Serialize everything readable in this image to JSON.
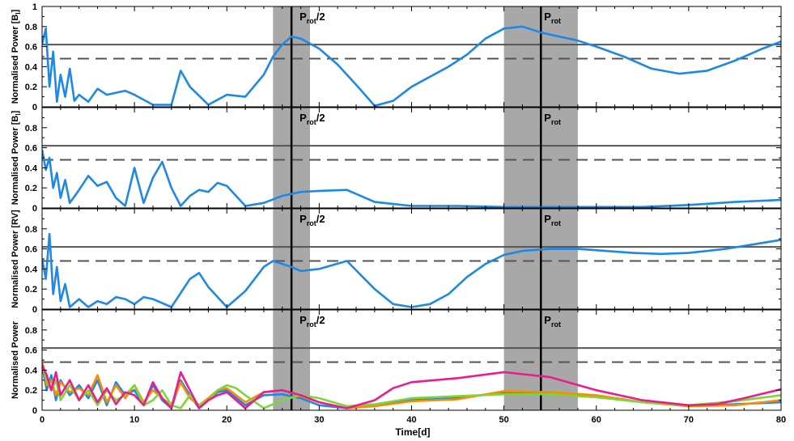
{
  "chart_data": {
    "type": "line",
    "xlabel": "Time[d]",
    "xlim": [
      0,
      80
    ],
    "x_ticks": [
      "0",
      "10",
      "20",
      "30",
      "40",
      "50",
      "60",
      "70",
      "80"
    ],
    "y_ticks": [
      "0",
      "0.2",
      "0.4",
      "0.6",
      "0.8",
      "1"
    ],
    "shaded_bands": [
      [
        25,
        29
      ],
      [
        50,
        58
      ]
    ],
    "vlines": [
      27,
      54
    ],
    "annotations": {
      "half": {
        "main": "P",
        "sub": "rot",
        "tail": "/2",
        "x": 27
      },
      "full": {
        "main": "P",
        "sub": "rot",
        "x": 54
      }
    },
    "panels": [
      {
        "ylabel": "Normalised Power [B",
        "ylabel_sub": "l",
        "ylabel_tail": "]",
        "ylim": [
          0,
          1
        ],
        "solid_threshold": 0.62,
        "dashed_threshold": 0.48,
        "series": [
          {
            "color": "#1E88E5",
            "x": [
              0,
              0.4,
              0.8,
              1.2,
              1.6,
              2,
              2.5,
              3,
              3.5,
              4,
              5,
              6,
              7,
              8,
              9,
              10,
              12,
              14,
              15,
              16,
              18,
              20,
              22,
              24,
              25,
              26,
              27,
              28,
              30,
              32,
              34,
              36,
              38,
              40,
              42,
              44,
              46,
              48,
              50,
              52,
              54,
              56,
              58,
              60,
              63,
              66,
              69,
              72,
              75,
              78,
              80
            ],
            "y": [
              0.62,
              0.78,
              0.2,
              0.55,
              0.05,
              0.32,
              0.1,
              0.38,
              0.06,
              0.12,
              0.05,
              0.18,
              0.12,
              0.14,
              0.16,
              0.12,
              0.02,
              0.02,
              0.36,
              0.2,
              0.02,
              0.12,
              0.1,
              0.32,
              0.5,
              0.62,
              0.7,
              0.68,
              0.58,
              0.42,
              0.22,
              0.01,
              0.06,
              0.2,
              0.3,
              0.4,
              0.52,
              0.68,
              0.78,
              0.8,
              0.74,
              0.7,
              0.66,
              0.6,
              0.5,
              0.38,
              0.33,
              0.36,
              0.46,
              0.58,
              0.65
            ]
          }
        ]
      },
      {
        "ylabel": "Normalised Power [B",
        "ylabel_sub": "l",
        "ylabel_tail": "]",
        "ylim": [
          0,
          1
        ],
        "solid_threshold": 0.62,
        "dashed_threshold": 0.48,
        "series": [
          {
            "color": "#1E88E5",
            "x": [
              0,
              0.4,
              0.8,
              1.2,
              1.6,
              2,
              2.5,
              3,
              4,
              5,
              6,
              7,
              8,
              9,
              10,
              11,
              12,
              13,
              14,
              15,
              16,
              17,
              18,
              19,
              20,
              22,
              24,
              26,
              28,
              30,
              33,
              36,
              40,
              45,
              50,
              55,
              60,
              65,
              70,
              75,
              80
            ],
            "y": [
              0.58,
              0.38,
              0.5,
              0.2,
              0.35,
              0.1,
              0.28,
              0.05,
              0.18,
              0.32,
              0.22,
              0.26,
              0.1,
              0.02,
              0.4,
              0.05,
              0.3,
              0.46,
              0.2,
              0.02,
              0.12,
              0.18,
              0.16,
              0.25,
              0.22,
              0.02,
              0.05,
              0.12,
              0.16,
              0.17,
              0.18,
              0.06,
              0.02,
              0.02,
              0.01,
              0.01,
              0.01,
              0.01,
              0.03,
              0.06,
              0.08
            ]
          }
        ]
      },
      {
        "ylabel": "Normalised Power [RV]",
        "ylabel_sub": "",
        "ylabel_tail": "",
        "ylim": [
          0,
          1
        ],
        "solid_threshold": 0.62,
        "dashed_threshold": 0.48,
        "series": [
          {
            "color": "#1E88E5",
            "x": [
              0,
              0.4,
              0.8,
              1.2,
              1.6,
              2,
              2.5,
              3,
              4,
              5,
              6,
              7,
              8,
              9,
              10,
              11,
              12,
              14,
              16,
              17,
              18,
              20,
              22,
              24,
              25,
              27,
              28,
              30,
              33,
              36,
              38,
              40,
              42,
              44,
              46,
              48,
              50,
              52,
              55,
              58,
              61,
              64,
              67,
              70,
              74,
              78,
              80
            ],
            "y": [
              0.5,
              0.3,
              0.75,
              0.15,
              0.42,
              0.08,
              0.25,
              0.02,
              0.1,
              0.02,
              0.08,
              0.05,
              0.12,
              0.1,
              0.05,
              0.12,
              0.1,
              0.02,
              0.3,
              0.36,
              0.22,
              0.02,
              0.18,
              0.42,
              0.48,
              0.42,
              0.38,
              0.4,
              0.48,
              0.2,
              0.05,
              0.02,
              0.05,
              0.15,
              0.32,
              0.45,
              0.54,
              0.58,
              0.6,
              0.6,
              0.58,
              0.56,
              0.55,
              0.56,
              0.6,
              0.66,
              0.69
            ]
          }
        ]
      },
      {
        "ylabel": "Normalised Power",
        "ylabel_sub": "",
        "ylabel_tail": "",
        "ylim": [
          0,
          1
        ],
        "solid_threshold": 0.62,
        "dashed_threshold": 0.48,
        "series": [
          {
            "color": "#1E88E5",
            "x": [
              0,
              0.5,
              1,
              1.5,
              2,
              3,
              4,
              5,
              6,
              7,
              8,
              9,
              10,
              11,
              12,
              13,
              14,
              15,
              16,
              17,
              18,
              19,
              20,
              22,
              24,
              26,
              28,
              30,
              33,
              36,
              40,
              45,
              50,
              55,
              60,
              65,
              70,
              75,
              80
            ],
            "y": [
              0.45,
              0.2,
              0.35,
              0.1,
              0.3,
              0.15,
              0.25,
              0.12,
              0.3,
              0.05,
              0.28,
              0.15,
              0.2,
              0.05,
              0.25,
              0.1,
              0.02,
              0.3,
              0.15,
              0.02,
              0.1,
              0.18,
              0.2,
              0.05,
              0.15,
              0.16,
              0.12,
              0.05,
              0.02,
              0.05,
              0.1,
              0.12,
              0.18,
              0.17,
              0.14,
              0.08,
              0.05,
              0.06,
              0.08
            ]
          },
          {
            "color": "#FB8C00",
            "x": [
              0,
              0.5,
              1,
              1.5,
              2,
              3,
              4,
              5,
              6,
              7,
              8,
              9,
              10,
              11,
              12,
              13,
              14,
              15,
              16,
              17,
              18,
              19,
              20,
              22,
              24,
              26,
              28,
              30,
              33,
              36,
              40,
              45,
              50,
              55,
              60,
              65,
              70,
              75,
              80
            ],
            "y": [
              0.5,
              0.25,
              0.3,
              0.15,
              0.28,
              0.18,
              0.22,
              0.15,
              0.35,
              0.08,
              0.25,
              0.12,
              0.25,
              0.08,
              0.2,
              0.12,
              0.05,
              0.28,
              0.12,
              0.05,
              0.12,
              0.2,
              0.22,
              0.08,
              0.18,
              0.2,
              0.14,
              0.08,
              0.02,
              0.04,
              0.09,
              0.11,
              0.19,
              0.18,
              0.15,
              0.08,
              0.04,
              0.05,
              0.1
            ]
          },
          {
            "color": "#7CD63A",
            "x": [
              0,
              0.5,
              1,
              1.5,
              2,
              3,
              4,
              5,
              6,
              7,
              8,
              9,
              10,
              11,
              12,
              13,
              14,
              15,
              16,
              17,
              18,
              19,
              20,
              21,
              22,
              24,
              26,
              28,
              30,
              33,
              36,
              40,
              45,
              50,
              55,
              60,
              65,
              70,
              75,
              80
            ],
            "y": [
              0.45,
              0.3,
              0.2,
              0.3,
              0.1,
              0.25,
              0.1,
              0.2,
              0.05,
              0.2,
              0.1,
              0.15,
              0.25,
              0.05,
              0.1,
              0.2,
              0.05,
              0.02,
              0.15,
              0.05,
              0.1,
              0.2,
              0.25,
              0.22,
              0.15,
              0.02,
              0.1,
              0.15,
              0.12,
              0.04,
              0.06,
              0.12,
              0.14,
              0.16,
              0.16,
              0.13,
              0.08,
              0.05,
              0.09,
              0.15
            ]
          },
          {
            "color": "#E91E8C",
            "x": [
              0,
              0.5,
              1,
              1.5,
              2,
              3,
              4,
              5,
              6,
              7,
              8,
              9,
              10,
              11,
              12,
              13,
              14,
              15,
              16,
              17,
              18,
              19,
              20,
              22,
              24,
              26,
              28,
              30,
              33,
              36,
              38,
              40,
              45,
              50,
              55,
              60,
              65,
              70,
              73,
              76,
              80
            ],
            "y": [
              0.45,
              0.35,
              0.2,
              0.38,
              0.15,
              0.3,
              0.1,
              0.25,
              0.08,
              0.22,
              0.06,
              0.18,
              0.15,
              0.05,
              0.28,
              0.12,
              0.02,
              0.38,
              0.2,
              0.02,
              0.1,
              0.15,
              0.18,
              0.02,
              0.18,
              0.2,
              0.15,
              0.08,
              0.02,
              0.1,
              0.22,
              0.28,
              0.32,
              0.38,
              0.33,
              0.2,
              0.1,
              0.05,
              0.06,
              0.12,
              0.21
            ]
          }
        ]
      }
    ]
  }
}
